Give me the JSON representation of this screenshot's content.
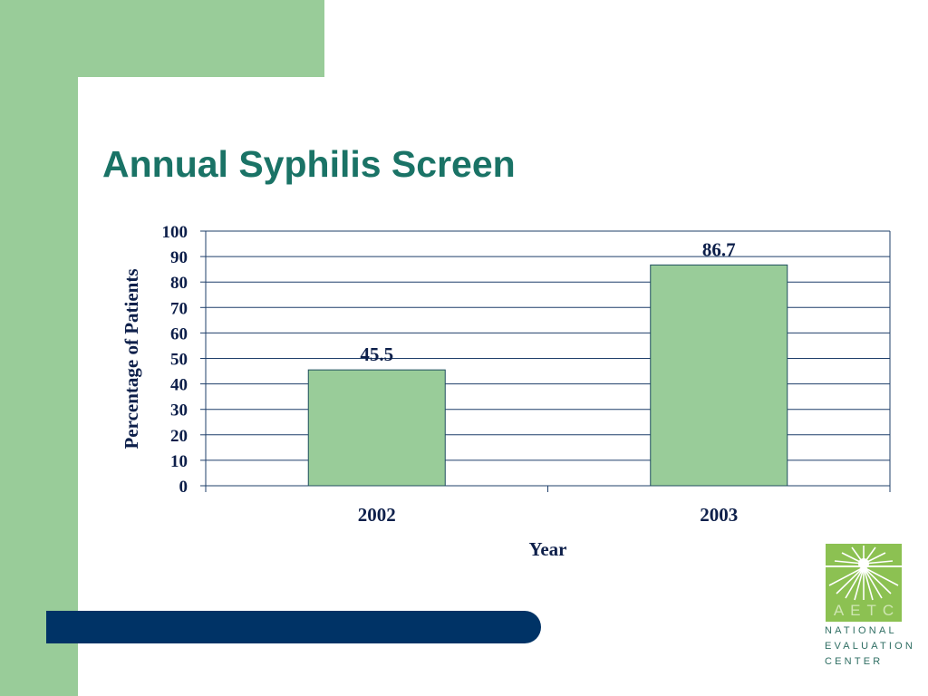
{
  "slide": {
    "title": "Annual Syphilis Screen"
  },
  "colors": {
    "title": "#1a7366",
    "bar_fill": "#99cc99",
    "bar_stroke": "#1f4e5f",
    "accent_green": "#99cc99",
    "bottom_bar": "#003366",
    "logo_green": "#8cc152"
  },
  "logo": {
    "acronym": "AETC",
    "line1": "NATIONAL",
    "line2": "EVALUATION",
    "line3": "CENTER",
    "icon": "sunburst-icon"
  },
  "chart_data": {
    "type": "bar",
    "categories": [
      "2002",
      "2003"
    ],
    "values": [
      45.5,
      86.7
    ],
    "data_labels": [
      "45.5",
      "86.7"
    ],
    "xlabel": "Year",
    "ylabel": "Percentage of Patients",
    "ylim": [
      0,
      100
    ],
    "yticks": [
      "0",
      "10",
      "20",
      "30",
      "40",
      "50",
      "60",
      "70",
      "80",
      "90",
      "100"
    ],
    "grid": true,
    "legend": "none"
  }
}
